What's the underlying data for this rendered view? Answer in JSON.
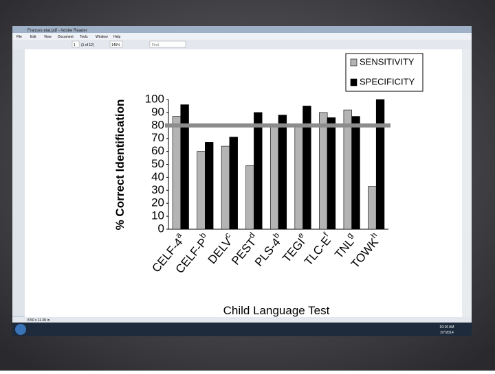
{
  "ui": {
    "window_title": "Frances etal.pdf - Adobe Reader",
    "menu": [
      "File",
      "Edit",
      "View",
      "Document",
      "Tools",
      "Window",
      "Help"
    ],
    "page_field": "1",
    "page_count": "(1 of 12)",
    "zoom": "145%",
    "find": "Find",
    "status": "8.50 x 11.00 in",
    "clock_time": "10:16 AM",
    "clock_date": "2/7/2014"
  },
  "chart_data": {
    "type": "bar",
    "y_label": "% Correct Identification",
    "x_label": "Child Language Test",
    "categories": [
      "CELF-4",
      "CELF-P",
      "DELV",
      "PEST",
      "PLS-4",
      "TEGI",
      "TLC-E",
      "TNL",
      "TOWK"
    ],
    "category_superscripts": [
      "a",
      "b",
      "c",
      "d",
      "b",
      "e",
      "f",
      "g",
      "h"
    ],
    "series": [
      {
        "name": "SENSITIVITY",
        "color": "#b4b4b4",
        "values": [
          87,
          60,
          64,
          49,
          80,
          80,
          90,
          92,
          33
        ]
      },
      {
        "name": "SPECIFICITY",
        "color": "#000000",
        "values": [
          96,
          67,
          71,
          90,
          88,
          95,
          86,
          87,
          100
        ]
      }
    ],
    "reference_line": 80,
    "ylim": [
      0,
      100
    ],
    "yticks": [
      0,
      10,
      20,
      30,
      40,
      50,
      60,
      70,
      80,
      90,
      100
    ],
    "legend": "top-right",
    "grid": false
  }
}
